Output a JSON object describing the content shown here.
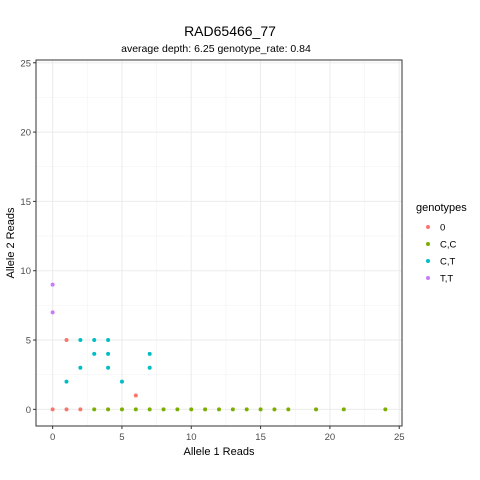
{
  "chart_data": {
    "type": "scatter",
    "title": "RAD65466_77",
    "subtitle": "average depth:  6.25  genotype_rate:  0.84",
    "xlabel": "Allele 1 Reads",
    "ylabel": "Allele 2 Reads",
    "xlim": [
      -1.2,
      25.2
    ],
    "ylim": [
      -1.2,
      25.2
    ],
    "x_ticks": [
      0,
      5,
      10,
      15,
      20,
      25
    ],
    "y_ticks": [
      0,
      5,
      10,
      15,
      20,
      25
    ],
    "grid": true,
    "legend_placement": "right",
    "legend_title": "genotypes",
    "series": [
      {
        "name": "0",
        "color": "#F8766D",
        "points": [
          [
            0,
            0
          ],
          [
            1,
            0
          ],
          [
            2,
            0
          ],
          [
            1,
            5
          ],
          [
            6,
            1
          ]
        ]
      },
      {
        "name": "C,C",
        "color": "#7CAE00",
        "points": [
          [
            3,
            0
          ],
          [
            4,
            0
          ],
          [
            5,
            0
          ],
          [
            6,
            0
          ],
          [
            7,
            0
          ],
          [
            8,
            0
          ],
          [
            9,
            0
          ],
          [
            10,
            0
          ],
          [
            11,
            0
          ],
          [
            12,
            0
          ],
          [
            13,
            0
          ],
          [
            14,
            0
          ],
          [
            15,
            0
          ],
          [
            16,
            0
          ],
          [
            17,
            0
          ],
          [
            19,
            0
          ],
          [
            21,
            0
          ],
          [
            24,
            0
          ]
        ]
      },
      {
        "name": "C,T",
        "color": "#00BFC4",
        "points": [
          [
            1,
            2
          ],
          [
            2,
            3
          ],
          [
            2,
            5
          ],
          [
            3,
            4
          ],
          [
            3,
            5
          ],
          [
            4,
            3
          ],
          [
            4,
            4
          ],
          [
            4,
            5
          ],
          [
            5,
            2
          ],
          [
            7,
            3
          ],
          [
            7,
            4
          ]
        ]
      },
      {
        "name": "T,T",
        "color": "#C77CFF",
        "points": [
          [
            0,
            7
          ],
          [
            0,
            9
          ]
        ]
      }
    ]
  }
}
